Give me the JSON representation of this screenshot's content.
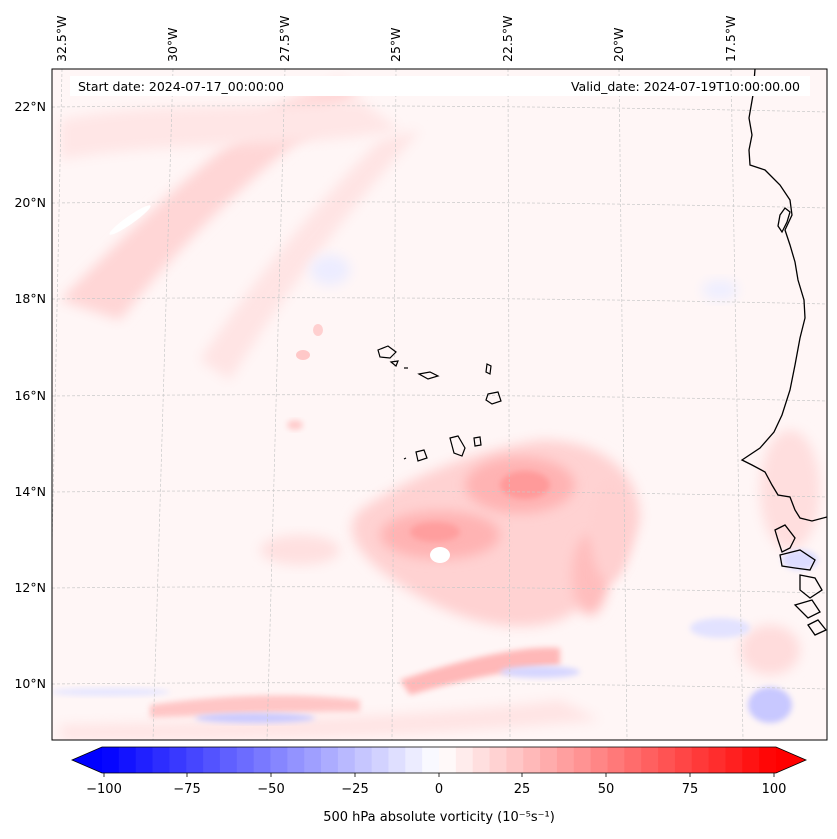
{
  "map": {
    "start_date": "Start date: 2024-07-17_00:00:00",
    "valid_date": "Valid_date: 2024-07-19T10:00:00.00",
    "lon_labels": [
      "32.5°W",
      "30°W",
      "27.5°W",
      "25°W",
      "22.5°W",
      "20°W",
      "17.5°W"
    ],
    "lat_labels": [
      "22°N",
      "20°N",
      "18°N",
      "16°N",
      "14°N",
      "12°N",
      "10°N"
    ],
    "extent": {
      "lon_min": -33.5,
      "lon_max": -15.8,
      "lat_min": 8.9,
      "lat_max": 22.8
    }
  },
  "colorbar": {
    "min": -100,
    "max": 100,
    "ticks": [
      "−100",
      "−75",
      "−50",
      "−25",
      "0",
      "25",
      "50",
      "75",
      "100"
    ],
    "label": "500 hPa absolute vorticity (10⁻⁵s⁻¹)",
    "neg_color": "#0000ff",
    "pos_color": "#ff0000"
  },
  "colors": {
    "background_field": "#fff7f7",
    "coastline": "#000000",
    "gridline": "#c8c8c8"
  }
}
